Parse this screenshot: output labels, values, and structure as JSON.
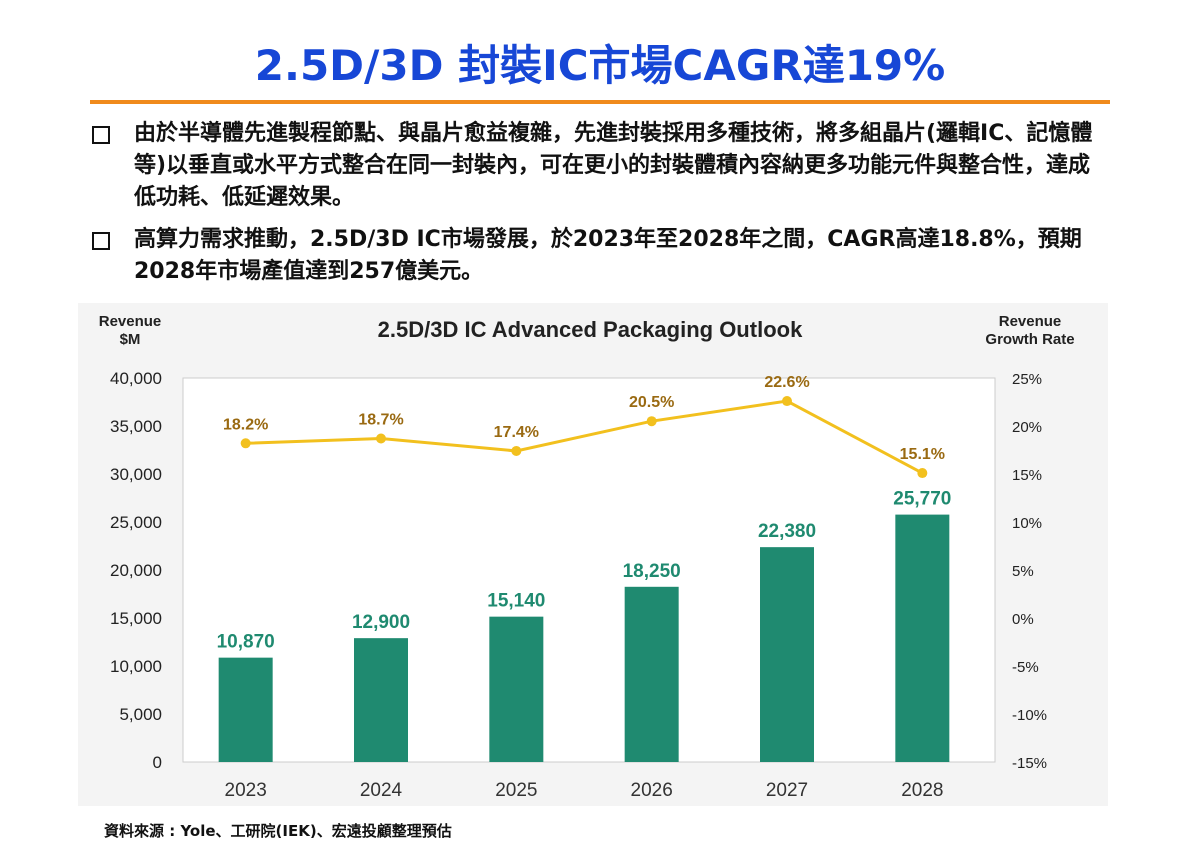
{
  "slide": {
    "title": "2.5D/3D 封裝IC市場CAGR達19%",
    "bullets": [
      "由於半導體先進製程節點、與晶片愈益複雜，先進封裝採用多種技術，將多組晶片(邏輯IC、記憶體等)以垂直或水平方式整合在同一封裝內，可在更小的封裝體積內容納更多功能元件與整合性，達成低功耗、低延遲效果。",
      "高算力需求推動，2.5D/3D  IC市場發展，於2023年至2028年之間，CAGR高達18.8%，預期2028年市場產值達到257億美元。"
    ],
    "source": "資料來源 : Yole、工研院(IEK)、宏遠投顧整理預估"
  },
  "chart_data": {
    "type": "bar+line",
    "title": "2.5D/3D IC Advanced Packaging Outlook",
    "ylabel": "Revenue $M",
    "ylabel_lines": [
      "Revenue",
      "$M"
    ],
    "y2label": "Revenue Growth Rate",
    "y2label_lines": [
      "Revenue",
      "Growth Rate"
    ],
    "categories": [
      "2023",
      "2024",
      "2025",
      "2026",
      "2027",
      "2028"
    ],
    "ylim": [
      0,
      40000
    ],
    "yticks": [
      "0",
      "5,000",
      "10,000",
      "15,000",
      "20,000",
      "25,000",
      "30,000",
      "35,000",
      "40,000"
    ],
    "y2lim": [
      -15,
      25
    ],
    "y2ticks": [
      "-15%",
      "-10%",
      "-5%",
      "0%",
      "5%",
      "10%",
      "15%",
      "20%",
      "25%"
    ],
    "series": [
      {
        "name": "Revenue",
        "type": "bar",
        "color": "#1f8a70",
        "values": [
          10870,
          12900,
          15140,
          18250,
          22380,
          25770
        ],
        "labels": [
          "10,870",
          "12,900",
          "15,140",
          "18,250",
          "22,380",
          "25,770"
        ]
      },
      {
        "name": "Revenue Growth Rate",
        "type": "line",
        "axis": "right",
        "color": "#f2c01e",
        "label_color": "#9a6a12",
        "values": [
          18.2,
          18.7,
          17.4,
          20.5,
          22.6,
          15.1
        ],
        "labels": [
          "18.2%",
          "18.7%",
          "17.4%",
          "20.5%",
          "22.6%",
          "15.1%"
        ]
      }
    ]
  }
}
